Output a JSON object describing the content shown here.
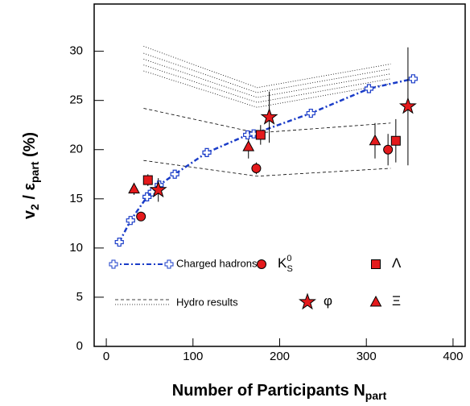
{
  "chart_data": {
    "type": "scatter",
    "xlabel": [
      "Number of Participants N",
      "part"
    ],
    "ylabel": [
      "v",
      "2",
      " / ε",
      "part",
      " (%)"
    ],
    "xlim": [
      -14,
      414
    ],
    "ylim": [
      0,
      34.8
    ],
    "xticks": [
      0,
      100,
      200,
      300,
      400
    ],
    "yticks": [
      0,
      5,
      10,
      15,
      20,
      25,
      30
    ],
    "charged": {
      "name": "Charged hadrons",
      "color": "#1a3cc8",
      "x": [
        15,
        28,
        47,
        53,
        61,
        79,
        116,
        163,
        170,
        236,
        303,
        354
      ],
      "values": [
        10.6,
        12.8,
        15.2,
        15.7,
        16.4,
        17.5,
        19.7,
        21.5,
        21.6,
        23.7,
        26.2,
        27.2
      ]
    },
    "hydro": {
      "name": "Hydro results",
      "curves": [
        {
          "style": "dotted",
          "x": [
            43,
            174,
            328
          ],
          "values": [
            30.5,
            26.3,
            28.7
          ]
        },
        {
          "style": "dotted",
          "x": [
            43,
            174,
            328
          ],
          "values": [
            29.8,
            25.8,
            28.2
          ]
        },
        {
          "style": "dotted",
          "x": [
            43,
            174,
            328
          ],
          "values": [
            29.2,
            25.3,
            27.7
          ]
        },
        {
          "style": "dotted",
          "x": [
            43,
            174,
            328
          ],
          "values": [
            28.6,
            24.8,
            27.2
          ]
        },
        {
          "style": "dotted",
          "x": [
            43,
            174,
            328
          ],
          "values": [
            28.0,
            24.3,
            26.7
          ]
        },
        {
          "style": "dashed",
          "x": [
            43,
            174,
            328
          ],
          "values": [
            24.2,
            21.7,
            22.7
          ]
        },
        {
          "style": "dashed",
          "x": [
            43,
            174,
            328
          ],
          "values": [
            18.9,
            17.3,
            18.1
          ]
        }
      ]
    },
    "color": "#e41a1c",
    "series": [
      {
        "name": "K",
        "subscript": "S",
        "superscript": "0",
        "marker": "circle",
        "x": [
          40,
          173,
          325
        ],
        "values": [
          13.2,
          18.1,
          20.0
        ],
        "errors": [
          0.4,
          0.6,
          1.6
        ]
      },
      {
        "name": "Λ",
        "marker": "square",
        "x": [
          48,
          178,
          334
        ],
        "values": [
          16.9,
          21.5,
          20.9
        ],
        "errors": [
          0.6,
          1.0,
          2.2
        ]
      },
      {
        "name": "φ",
        "marker": "star",
        "x": [
          60,
          188,
          348
        ],
        "values": [
          15.9,
          23.3,
          24.4
        ],
        "errors": [
          1.2,
          2.6,
          6.0
        ]
      },
      {
        "name": "Ξ",
        "marker": "triangle",
        "x": [
          32,
          164,
          310
        ],
        "values": [
          16.0,
          20.3,
          20.9
        ],
        "errors": [
          0.6,
          1.2,
          1.8
        ]
      }
    ]
  }
}
